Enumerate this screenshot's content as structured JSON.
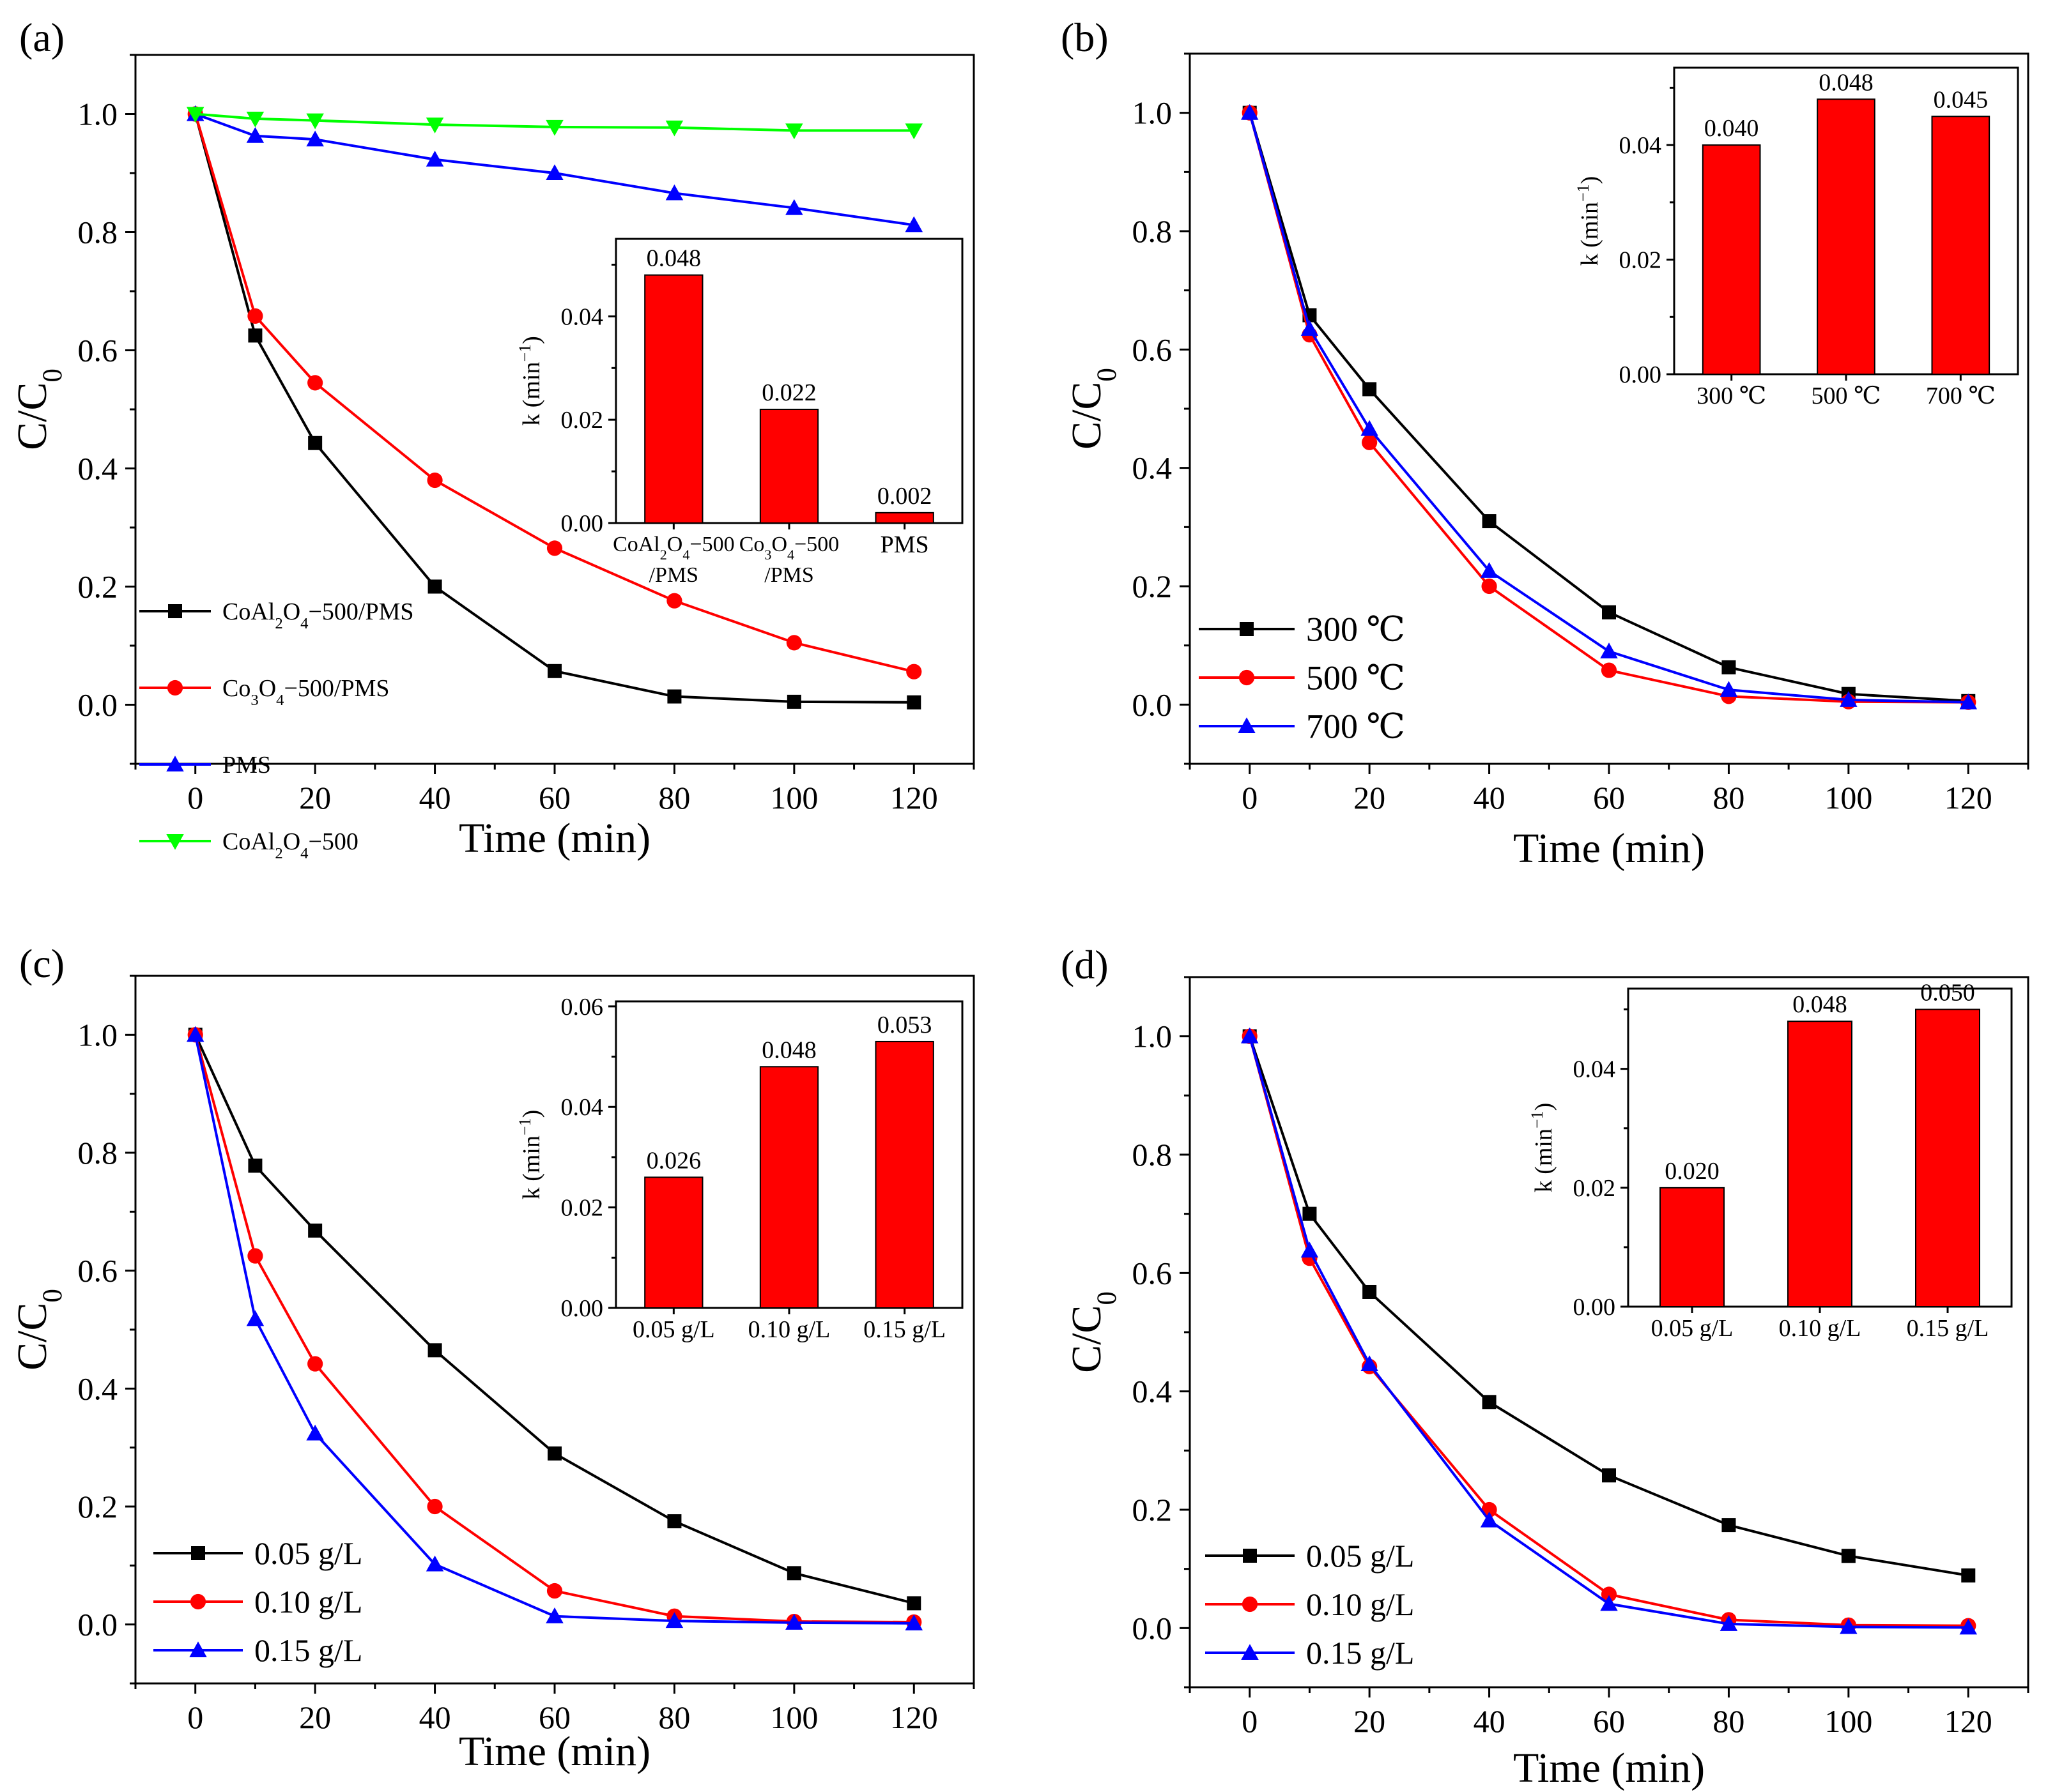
{
  "figure": {
    "description_free": true
  },
  "chart_data": [
    {
      "panel_label": "(a)",
      "type": "line",
      "xlabel": "Time (min)",
      "ylabel": "C/C0",
      "xlim": [
        -10,
        130
      ],
      "ylim": [
        -0.1,
        1.1
      ],
      "xticks": [
        0,
        20,
        40,
        60,
        80,
        100,
        120
      ],
      "yticks": [
        0.0,
        0.2,
        0.4,
        0.6,
        0.8,
        1.0
      ],
      "x": [
        0,
        10,
        20,
        40,
        60,
        80,
        100,
        120
      ],
      "legend_position": "bottom-left",
      "series": [
        {
          "name": "CoAl2O4−500/PMS",
          "color": "#000000",
          "marker": "square",
          "values": [
            1.0,
            0.625,
            0.443,
            0.2,
            0.057,
            0.014,
            0.005,
            0.004
          ]
        },
        {
          "name": "Co3O4−500/PMS",
          "color": "#ff0000",
          "marker": "circle",
          "values": [
            1.0,
            0.658,
            0.545,
            0.38,
            0.265,
            0.176,
            0.105,
            0.056
          ]
        },
        {
          "name": "PMS",
          "color": "#0000ff",
          "marker": "triangle-up",
          "values": [
            1.0,
            0.963,
            0.957,
            0.923,
            0.9,
            0.866,
            0.841,
            0.812
          ]
        },
        {
          "name": "CoAl2O4−500",
          "color": "#00ff00",
          "marker": "triangle-down",
          "values": [
            1.0,
            0.992,
            0.989,
            0.982,
            0.978,
            0.977,
            0.972,
            0.972
          ]
        }
      ],
      "inset": {
        "type": "bar",
        "ylabel": "k (min−1)",
        "ylim": [
          0,
          0.055
        ],
        "yticks": [
          0.0,
          0.02,
          0.04
        ],
        "categories": [
          "CoAl2O4−500/PMS",
          "Co3O4−500/PMS",
          "PMS"
        ],
        "values": [
          0.048,
          0.022,
          0.002
        ],
        "value_labels": [
          "0.048",
          "0.022",
          "0.002"
        ],
        "bar_color": "#ff0000"
      }
    },
    {
      "panel_label": "(b)",
      "type": "line",
      "xlabel": "Time (min)",
      "ylabel": "C/C0",
      "xlim": [
        -10,
        130
      ],
      "ylim": [
        -0.1,
        1.1
      ],
      "xticks": [
        0,
        20,
        40,
        60,
        80,
        100,
        120
      ],
      "yticks": [
        0.0,
        0.2,
        0.4,
        0.6,
        0.8,
        1.0
      ],
      "x": [
        0,
        10,
        20,
        40,
        60,
        80,
        100,
        120
      ],
      "legend_position": "bottom-left",
      "series": [
        {
          "name": "300 ℃",
          "color": "#000000",
          "marker": "square",
          "values": [
            1.0,
            0.658,
            0.533,
            0.31,
            0.156,
            0.063,
            0.018,
            0.006
          ]
        },
        {
          "name": "500 ℃",
          "color": "#ff0000",
          "marker": "circle",
          "values": [
            1.0,
            0.625,
            0.443,
            0.2,
            0.058,
            0.014,
            0.005,
            0.004
          ]
        },
        {
          "name": "700 ℃",
          "color": "#0000ff",
          "marker": "triangle-up",
          "values": [
            1.0,
            0.635,
            0.466,
            0.226,
            0.09,
            0.025,
            0.008,
            0.004
          ]
        }
      ],
      "inset": {
        "type": "bar",
        "ylabel": "k (min−1)",
        "ylim": [
          0,
          0.0535
        ],
        "yticks": [
          0.0,
          0.02,
          0.04
        ],
        "categories": [
          "300 ℃",
          "500 ℃",
          "700 ℃"
        ],
        "values": [
          0.04,
          0.048,
          0.045
        ],
        "value_labels": [
          "0.040",
          "0.048",
          "0.045"
        ],
        "bar_color": "#ff0000"
      }
    },
    {
      "panel_label": "(c)",
      "type": "line",
      "xlabel": "Time (min)",
      "ylabel": "C/C0",
      "xlim": [
        -10,
        130
      ],
      "ylim": [
        -0.1,
        1.1
      ],
      "xticks": [
        0,
        20,
        40,
        60,
        80,
        100,
        120
      ],
      "yticks": [
        0.0,
        0.2,
        0.4,
        0.6,
        0.8,
        1.0
      ],
      "x": [
        0,
        10,
        20,
        40,
        60,
        80,
        100,
        120
      ],
      "legend_position": "bottom-left",
      "series": [
        {
          "name": "0.05 g/L",
          "color": "#000000",
          "marker": "square",
          "values": [
            1.0,
            0.778,
            0.668,
            0.465,
            0.29,
            0.175,
            0.087,
            0.036
          ]
        },
        {
          "name": "0.10 g/L",
          "color": "#ff0000",
          "marker": "circle",
          "values": [
            1.0,
            0.625,
            0.442,
            0.2,
            0.057,
            0.014,
            0.005,
            0.004
          ]
        },
        {
          "name": "0.15 g/L",
          "color": "#0000ff",
          "marker": "triangle-up",
          "values": [
            1.0,
            0.518,
            0.324,
            0.102,
            0.014,
            0.006,
            0.003,
            0.002
          ]
        }
      ],
      "inset": {
        "type": "bar",
        "ylabel": "k (min−1)",
        "ylim": [
          0,
          0.061
        ],
        "yticks": [
          0.0,
          0.02,
          0.04,
          0.06
        ],
        "categories": [
          "0.05 g/L",
          "0.10 g/L",
          "0.15 g/L"
        ],
        "values": [
          0.026,
          0.048,
          0.053
        ],
        "value_labels": [
          "0.026",
          "0.048",
          "0.053"
        ],
        "bar_color": "#ff0000"
      }
    },
    {
      "panel_label": "(d)",
      "type": "line",
      "xlabel": "Time (min)",
      "ylabel": "C/C0",
      "xlim": [
        -10,
        130
      ],
      "ylim": [
        -0.1,
        1.1
      ],
      "xticks": [
        0,
        20,
        40,
        60,
        80,
        100,
        120
      ],
      "yticks": [
        0.0,
        0.2,
        0.4,
        0.6,
        0.8,
        1.0
      ],
      "x": [
        0,
        10,
        20,
        40,
        60,
        80,
        100,
        120
      ],
      "legend_position": "bottom-left",
      "series": [
        {
          "name": "0.05 g/L",
          "color": "#000000",
          "marker": "square",
          "values": [
            1.0,
            0.7,
            0.568,
            0.382,
            0.258,
            0.174,
            0.122,
            0.089
          ]
        },
        {
          "name": "0.10 g/L",
          "color": "#ff0000",
          "marker": "circle",
          "values": [
            1.0,
            0.625,
            0.442,
            0.2,
            0.057,
            0.014,
            0.005,
            0.004
          ]
        },
        {
          "name": "0.15 g/L",
          "color": "#0000ff",
          "marker": "triangle-up",
          "values": [
            1.0,
            0.638,
            0.446,
            0.182,
            0.041,
            0.007,
            0.002,
            0.001
          ]
        }
      ],
      "inset": {
        "type": "bar",
        "ylabel": "k (min−1)",
        "ylim": [
          0,
          0.0535
        ],
        "yticks": [
          0.0,
          0.02,
          0.04
        ],
        "categories": [
          "0.05 g/L",
          "0.10 g/L",
          "0.15 g/L"
        ],
        "values": [
          0.02,
          0.048,
          0.05
        ],
        "value_labels": [
          "0.020",
          "0.048",
          "0.050"
        ],
        "bar_color": "#ff0000"
      }
    }
  ]
}
